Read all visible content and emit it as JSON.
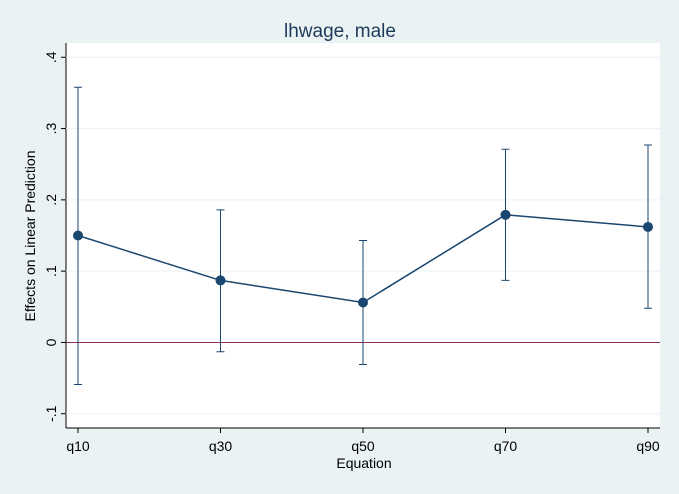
{
  "chart_data": {
    "type": "errorbar-line",
    "title": "lhwage, male",
    "xlabel": "Equation",
    "ylabel": "Effects on Linear Prediction",
    "categories": [
      "q10",
      "q30",
      "q50",
      "q70",
      "q90"
    ],
    "series": [
      {
        "color": "#1a476f",
        "values": [
          0.15,
          0.087,
          0.056,
          0.179,
          0.162
        ],
        "ci_low": [
          -0.059,
          -0.013,
          -0.031,
          0.087,
          0.048
        ],
        "ci_high": [
          0.358,
          0.186,
          0.143,
          0.271,
          0.277
        ]
      }
    ],
    "ylim": [
      -0.12,
      0.42
    ],
    "yticks": [
      {
        "value": -0.1,
        "label": "-.1"
      },
      0,
      {
        "value": 0.1,
        "label": ".1"
      },
      {
        "value": 0.2,
        "label": ".2"
      },
      {
        "value": 0.3,
        "label": ".3"
      },
      {
        "value": 0.4,
        "label": ".4"
      }
    ],
    "grid": true,
    "yline": 0,
    "yline_color": "#90305a"
  }
}
